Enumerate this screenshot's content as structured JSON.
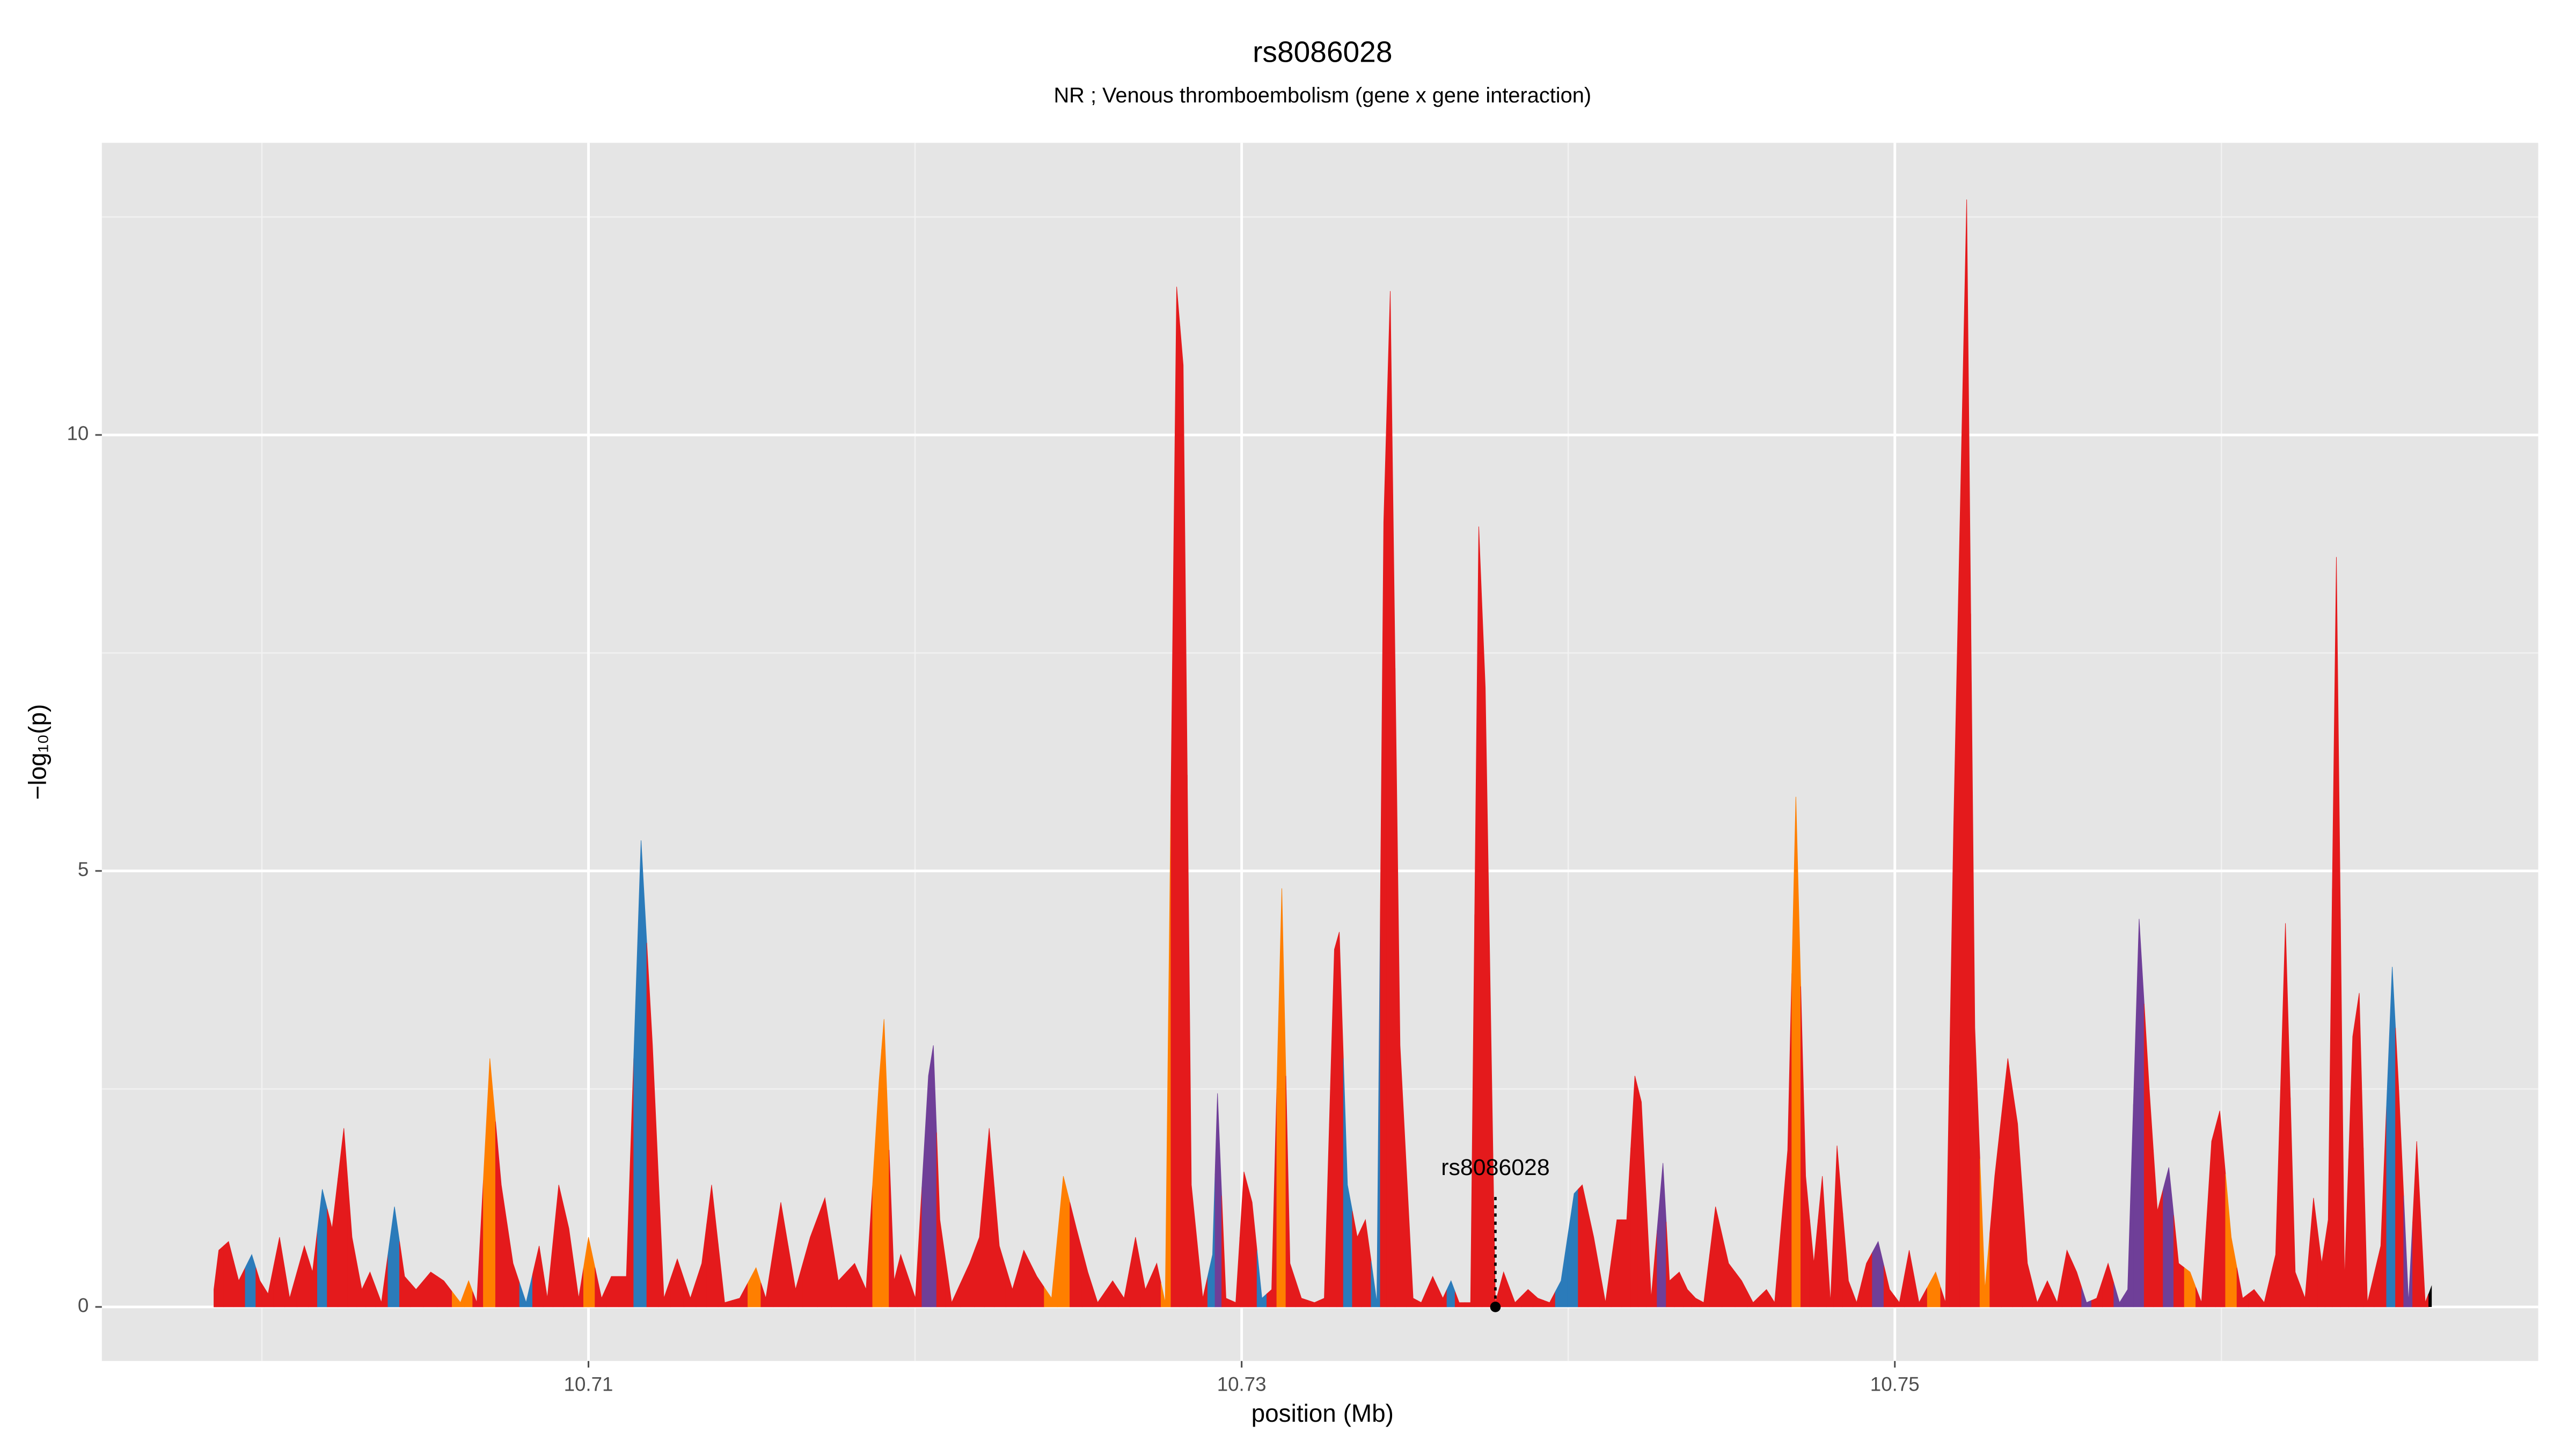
{
  "chart_data": {
    "type": "area",
    "title": "rs8086028",
    "subtitle": "NR ; Venous thromboembolism (gene x gene interaction)",
    "xlabel": "position (Mb)",
    "ylabel": "−log₁₀(p)",
    "xlim": [
      10.6951,
      10.7697
    ],
    "ylim": [
      -0.62,
      13.35
    ],
    "xticks": [
      10.71,
      10.73,
      10.75
    ],
    "yticks": [
      0,
      5,
      10
    ],
    "xminorticks": [
      10.7,
      10.72,
      10.74,
      10.76
    ],
    "yminorticks": [
      2.5,
      7.5,
      12.5
    ],
    "grid": true,
    "annotation": {
      "text": "rs8086028",
      "x": 10.73777,
      "y": 0
    },
    "x": [
      10.69853,
      10.69868,
      10.69898,
      10.69929,
      10.69969,
      10.69994,
      10.70019,
      10.70054,
      10.70085,
      10.7013,
      10.70155,
      10.70185,
      10.70215,
      10.70251,
      10.70276,
      10.70306,
      10.70331,
      10.70366,
      10.70406,
      10.70437,
      10.70472,
      10.70517,
      10.70557,
      10.70608,
      10.70633,
      10.70658,
      10.70698,
      10.70733,
      10.70769,
      10.70809,
      10.70849,
      10.70874,
      10.70909,
      10.7094,
      10.7097,
      10.71,
      10.7104,
      10.7107,
      10.71116,
      10.71161,
      10.71196,
      10.71231,
      10.71272,
      10.71312,
      10.71347,
      10.71377,
      10.71417,
      10.71463,
      10.71513,
      10.71543,
      10.71589,
      10.71634,
      10.71679,
      10.71724,
      10.71765,
      10.71815,
      10.7185,
      10.7189,
      10.71905,
      10.71936,
      10.71956,
      10.72001,
      10.72041,
      10.72056,
      10.72076,
      10.72112,
      10.72167,
      10.72197,
      10.72227,
      10.72258,
      10.72298,
      10.72333,
      10.72373,
      10.72418,
      10.72454,
      10.72494,
      10.72529,
      10.72559,
      10.72605,
      10.7264,
      10.72675,
      10.72705,
      10.7274,
      10.72766,
      10.72801,
      10.72821,
      10.72846,
      10.72881,
      10.72911,
      10.72926,
      10.72952,
      10.72982,
      10.73007,
      10.73032,
      10.73062,
      10.73092,
      10.73123,
      10.73148,
      10.73183,
      10.73223,
      10.73253,
      10.73284,
      10.73299,
      10.73324,
      10.73354,
      10.73379,
      10.73414,
      10.73435,
      10.73455,
      10.73485,
      10.73525,
      10.7355,
      10.73585,
      10.73616,
      10.73641,
      10.73666,
      10.73701,
      10.73726,
      10.73746,
      10.73777,
      10.73802,
      10.73837,
      10.73877,
      10.73907,
      10.73943,
      10.73978,
      10.74018,
      10.74043,
      10.74078,
      10.74114,
      10.74149,
      10.74179,
      10.74204,
      10.74224,
      10.74254,
      10.7429,
      10.7431,
      10.7434,
      10.74365,
      10.7439,
      10.74415,
      10.74451,
      10.74491,
      10.74531,
      10.74566,
      10.74607,
      10.74632,
      10.74672,
      10.74697,
      10.74727,
      10.74752,
      10.74778,
      10.74803,
      10.74823,
      10.74858,
      10.74883,
      10.74913,
      10.74949,
      10.74984,
      10.75014,
      10.75044,
      10.75074,
      10.75125,
      10.75155,
      10.7518,
      10.7522,
      10.75245,
      10.75276,
      10.75306,
      10.75346,
      10.75376,
      10.75406,
      10.75436,
      10.75467,
      10.75497,
      10.75527,
      10.75557,
      10.75587,
      10.75618,
      10.75653,
      10.75688,
      10.75713,
      10.75748,
      10.75779,
      10.75804,
      10.75839,
      10.75869,
      10.75904,
      10.75939,
      10.7597,
      10.75995,
      10.7603,
      10.76065,
      10.761,
      10.76131,
      10.76166,
      10.76196,
      10.76226,
      10.76256,
      10.76282,
      10.76307,
      10.76327,
      10.76352,
      10.76377,
      10.76402,
      10.76422,
      10.76447,
      10.76488,
      10.76523,
      10.76543,
      10.76573,
      10.76598,
      10.76624,
      10.76644
    ],
    "values": [
      0.2,
      0.65,
      0.75,
      0.3,
      0.6,
      0.3,
      0.15,
      0.8,
      0.1,
      0.7,
      0.4,
      1.35,
      0.9,
      2.05,
      0.8,
      0.2,
      0.4,
      0.05,
      1.15,
      0.35,
      0.2,
      0.4,
      0.3,
      0.05,
      0.3,
      0.05,
      2.85,
      1.4,
      0.5,
      0.05,
      0.7,
      0.1,
      1.4,
      0.9,
      0.1,
      0.8,
      0.1,
      0.35,
      0.35,
      5.35,
      3.0,
      0.1,
      0.55,
      0.1,
      0.5,
      1.4,
      0.05,
      0.1,
      0.45,
      0.1,
      1.2,
      0.2,
      0.8,
      1.25,
      0.3,
      0.5,
      0.2,
      2.6,
      3.3,
      0.3,
      0.6,
      0.1,
      2.65,
      3.0,
      1.0,
      0.05,
      0.5,
      0.8,
      2.05,
      0.7,
      0.2,
      0.65,
      0.35,
      0.1,
      1.5,
      0.9,
      0.4,
      0.05,
      0.3,
      0.1,
      0.8,
      0.2,
      0.5,
      0.05,
      11.7,
      10.8,
      1.4,
      0.1,
      0.6,
      2.45,
      0.1,
      0.05,
      1.55,
      1.2,
      0.1,
      0.2,
      4.8,
      0.5,
      0.1,
      0.05,
      0.1,
      4.1,
      4.3,
      1.4,
      0.8,
      1.0,
      0.05,
      9.0,
      11.65,
      3.0,
      0.1,
      0.05,
      0.35,
      0.1,
      0.3,
      0.05,
      0.05,
      8.95,
      7.1,
      0.05,
      0.4,
      0.05,
      0.2,
      0.1,
      0.05,
      0.3,
      1.3,
      1.4,
      0.8,
      0.05,
      1.0,
      1.0,
      2.65,
      2.35,
      0.1,
      1.65,
      0.3,
      0.4,
      0.2,
      0.1,
      0.05,
      1.15,
      0.5,
      0.3,
      0.05,
      0.2,
      0.05,
      1.8,
      5.85,
      1.5,
      0.5,
      1.5,
      0.05,
      1.85,
      0.3,
      0.05,
      0.5,
      0.75,
      0.2,
      0.05,
      0.65,
      0.05,
      0.4,
      0.05,
      5.5,
      12.7,
      3.2,
      0.2,
      1.5,
      2.85,
      2.1,
      0.5,
      0.05,
      0.3,
      0.05,
      0.65,
      0.4,
      0.05,
      0.1,
      0.5,
      0.05,
      0.2,
      4.45,
      2.5,
      1.1,
      1.6,
      0.5,
      0.4,
      0.05,
      1.9,
      2.25,
      0.8,
      0.1,
      0.2,
      0.05,
      0.6,
      4.4,
      0.4,
      0.1,
      1.25,
      0.5,
      1.0,
      8.6,
      0.3,
      3.1,
      3.6,
      0.05,
      0.7,
      3.9,
      2.5,
      0.05,
      1.9,
      0.05,
      0.25
    ],
    "colors": [
      "#e41a1c",
      "#e41a1c",
      "#e41a1c",
      "#e41a1c",
      "#2b7bba",
      "#e41a1c",
      "#e41a1c",
      "#e41a1c",
      "#e41a1c",
      "#e41a1c",
      "#e41a1c",
      "#2b7bba",
      "#e41a1c",
      "#e41a1c",
      "#e41a1c",
      "#e41a1c",
      "#e41a1c",
      "#e41a1c",
      "#2b7bba",
      "#e41a1c",
      "#e41a1c",
      "#e41a1c",
      "#e41a1c",
      "#ff7f00",
      "#ff7f00",
      "#e41a1c",
      "#ff7f00",
      "#e41a1c",
      "#e41a1c",
      "#2b7bba",
      "#e41a1c",
      "#e41a1c",
      "#e41a1c",
      "#e41a1c",
      "#e41a1c",
      "#ff7f00",
      "#e41a1c",
      "#e41a1c",
      "#e41a1c",
      "#2b7bba",
      "#e41a1c",
      "#e41a1c",
      "#e41a1c",
      "#e41a1c",
      "#e41a1c",
      "#e41a1c",
      "#e41a1c",
      "#e41a1c",
      "#ff7f00",
      "#e41a1c",
      "#e41a1c",
      "#e41a1c",
      "#e41a1c",
      "#e41a1c",
      "#e41a1c",
      "#e41a1c",
      "#e41a1c",
      "#ff7f00",
      "#ff7f00",
      "#e41a1c",
      "#e41a1c",
      "#e41a1c",
      "#6f3f98",
      "#6f3f98",
      "#e41a1c",
      "#e41a1c",
      "#e41a1c",
      "#e41a1c",
      "#e41a1c",
      "#e41a1c",
      "#e41a1c",
      "#e41a1c",
      "#e41a1c",
      "#ff7f00",
      "#ff7f00",
      "#e41a1c",
      "#e41a1c",
      "#e41a1c",
      "#e41a1c",
      "#e41a1c",
      "#e41a1c",
      "#e41a1c",
      "#e41a1c",
      "#ff7f00",
      "#e41a1c",
      "#e41a1c",
      "#e41a1c",
      "#e41a1c",
      "#2b7bba",
      "#6f3f98",
      "#e41a1c",
      "#e41a1c",
      "#e41a1c",
      "#e41a1c",
      "#2b7bba",
      "#e41a1c",
      "#ff7f00",
      "#e41a1c",
      "#e41a1c",
      "#e41a1c",
      "#e41a1c",
      "#e41a1c",
      "#e41a1c",
      "#2b7bba",
      "#e41a1c",
      "#e41a1c",
      "#2b7bba",
      "#e41a1c",
      "#e41a1c",
      "#e41a1c",
      "#e41a1c",
      "#e41a1c",
      "#e41a1c",
      "#e41a1c",
      "#2b7bba",
      "#e41a1c",
      "#e41a1c",
      "#e41a1c",
      "#e41a1c",
      "#e41a1c",
      "#e41a1c",
      "#e41a1c",
      "#e41a1c",
      "#e41a1c",
      "#e41a1c",
      "#2b7bba",
      "#2b7bba",
      "#e41a1c",
      "#e41a1c",
      "#e41a1c",
      "#e41a1c",
      "#e41a1c",
      "#e41a1c",
      "#e41a1c",
      "#e41a1c",
      "#6f3f98",
      "#e41a1c",
      "#e41a1c",
      "#e41a1c",
      "#e41a1c",
      "#e41a1c",
      "#e41a1c",
      "#e41a1c",
      "#e41a1c",
      "#e41a1c",
      "#e41a1c",
      "#e41a1c",
      "#e41a1c",
      "#ff7f00",
      "#e41a1c",
      "#e41a1c",
      "#e41a1c",
      "#e41a1c",
      "#e41a1c",
      "#e41a1c",
      "#e41a1c",
      "#e41a1c",
      "#6f3f98",
      "#e41a1c",
      "#e41a1c",
      "#e41a1c",
      "#e41a1c",
      "#ff7f00",
      "#e41a1c",
      "#e41a1c",
      "#e41a1c",
      "#e41a1c",
      "#ff7f00",
      "#e41a1c",
      "#e41a1c",
      "#e41a1c",
      "#e41a1c",
      "#e41a1c",
      "#e41a1c",
      "#e41a1c",
      "#e41a1c",
      "#e41a1c",
      "#6f3f98",
      "#e41a1c",
      "#e41a1c",
      "#6f3f98",
      "#6f3f98",
      "#6f3f98",
      "#e41a1c",
      "#e41a1c",
      "#6f3f98",
      "#e41a1c",
      "#ff7f00",
      "#e41a1c",
      "#e41a1c",
      "#e41a1c",
      "#ff7f00",
      "#e41a1c",
      "#e41a1c",
      "#e41a1c",
      "#e41a1c",
      "#e41a1c",
      "#e41a1c",
      "#e41a1c",
      "#e41a1c",
      "#e41a1c",
      "#e41a1c",
      "#e41a1c",
      "#e41a1c",
      "#e41a1c",
      "#e41a1c",
      "#e41a1c",
      "#e41a1c",
      "#2b7bba",
      "#e41a1c",
      "#6f3f98",
      "#e41a1c",
      "#e41a1c"
    ]
  }
}
